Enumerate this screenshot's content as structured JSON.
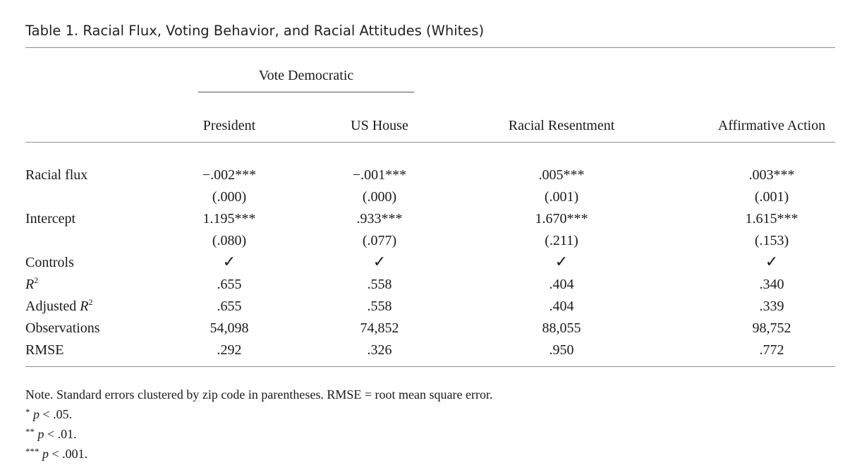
{
  "table": {
    "caption": "Table 1. Racial Flux, Voting Behavior, and Racial Attitudes (Whites)",
    "spanner": "Vote Democratic",
    "columns": [
      "President",
      "US House",
      "Racial Resentment",
      "Affirmative Action"
    ],
    "rows": [
      {
        "label": "Racial flux",
        "cells": [
          "−.002***",
          "−.001***",
          ".005***",
          ".003***"
        ]
      },
      {
        "label": "",
        "cells": [
          "(.000)",
          "(.000)",
          "(.001)",
          "(.001)"
        ]
      },
      {
        "label": "Intercept",
        "cells": [
          "1.195***",
          ".933***",
          "1.670***",
          "1.615***"
        ]
      },
      {
        "label": "",
        "cells": [
          "(.080)",
          "(.077)",
          "(.211)",
          "(.153)"
        ]
      },
      {
        "label": "Controls",
        "cells": [
          "✓",
          "✓",
          "✓",
          "✓"
        ]
      },
      {
        "label_main": "R",
        "label_sup": "2",
        "cells": [
          ".655",
          ".558",
          ".404",
          ".340"
        ]
      },
      {
        "label_prefix": "Adjusted ",
        "label_main": "R",
        "label_sup": "2",
        "cells": [
          ".655",
          ".558",
          ".404",
          ".339"
        ]
      },
      {
        "label": "Observations",
        "cells": [
          "54,098",
          "74,852",
          "88,055",
          "98,752"
        ]
      },
      {
        "label": "RMSE",
        "cells": [
          ".292",
          ".326",
          ".950",
          ".772"
        ]
      }
    ]
  },
  "notes": {
    "main": "Note. Standard errors clustered by zip code in parentheses. RMSE = root mean square error.",
    "sig": [
      {
        "stars": "*",
        "p": "p",
        "text": " < .05."
      },
      {
        "stars": "**",
        "p": "p",
        "text": " < .01."
      },
      {
        "stars": "***",
        "p": "p",
        "text": " < .001."
      }
    ]
  }
}
